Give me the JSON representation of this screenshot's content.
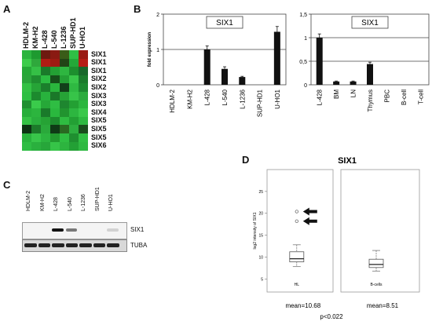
{
  "panels": {
    "a": "A",
    "b": "B",
    "c": "C",
    "d": "D"
  },
  "heatmap": {
    "cell_lines": [
      "HDLM-2",
      "KM-H2",
      "L-428",
      "L-540",
      "L-1236",
      "SUP-HD1",
      "U-HO1"
    ],
    "genes": [
      "SIX1",
      "SIX1",
      "SIX1",
      "SIX2",
      "SIX2",
      "SIX3",
      "SIX3",
      "SIX4",
      "SIX5",
      "SIX5",
      "SIX5",
      "SIX6"
    ],
    "colors": [
      [
        "#2bb43e",
        "#1e9a30",
        "#6e1a10",
        "#8a1a12",
        "#3a5c18",
        "#2fbf45",
        "#9a1b14"
      ],
      [
        "#3ccc4a",
        "#2fa83c",
        "#b01c14",
        "#9e1a12",
        "#224416",
        "#24a838",
        "#b51e16"
      ],
      [
        "#25a836",
        "#35c046",
        "#1a7a2a",
        "#23a034",
        "#2eb640",
        "#1d8f2e",
        "#17682a"
      ],
      [
        "#2aa53a",
        "#1f8e30",
        "#2cbc42",
        "#164f1a",
        "#24a035",
        "#39c64a",
        "#1a7c2c"
      ],
      [
        "#33c144",
        "#26a437",
        "#1b7f2c",
        "#2ab63d",
        "#12401a",
        "#2fb942",
        "#1c8a30"
      ],
      [
        "#2dbf42",
        "#1c8a2e",
        "#28b23d",
        "#1a7829",
        "#26a236",
        "#37c449",
        "#2bac3e"
      ],
      [
        "#1f9030",
        "#3acb4b",
        "#26a838",
        "#2fbd43",
        "#1e862f",
        "#23a033",
        "#2cb63f"
      ],
      [
        "#27ae3a",
        "#2cb53e",
        "#1a7a2a",
        "#2ab83e",
        "#21942f",
        "#2db640",
        "#3ac84b"
      ],
      [
        "#35c245",
        "#2aaf3d",
        "#26a335",
        "#1d8c2e",
        "#2fbc41",
        "#23a034",
        "#2eb941"
      ],
      [
        "#0d3313",
        "#1c7a2a",
        "#2aa93b",
        "#0f3a16",
        "#2a6a22",
        "#2dae3f",
        "#1a4d1d"
      ],
      [
        "#29b33d",
        "#38c64a",
        "#2cb43f",
        "#22992f",
        "#2fbe42",
        "#1f8f30",
        "#31bf44"
      ],
      [
        "#2ebd43",
        "#2ab03e",
        "#27a63a",
        "#36c448",
        "#2db43f",
        "#23a035",
        "#2fb942"
      ]
    ]
  },
  "chart_data": [
    {
      "type": "bar",
      "title": "SIX1",
      "ylabel": "fold expression",
      "categories": [
        "HDLM-2",
        "KM-H2",
        "L-428",
        "L-540",
        "L-1236",
        "SUP-HD1",
        "U-HO1"
      ],
      "values": [
        0,
        0,
        1.0,
        0.45,
        0.22,
        0,
        1.5
      ],
      "errors": [
        0,
        0,
        0.1,
        0.06,
        0.02,
        0,
        0.15
      ],
      "ylim": [
        0,
        2
      ],
      "yticks": [
        "0",
        "1",
        "2"
      ],
      "refline": 1
    },
    {
      "type": "bar",
      "title": "SIX1",
      "categories": [
        "L-428",
        "BM",
        "LN",
        "Thymus",
        "PBC",
        "B-cell",
        "T-cell"
      ],
      "values": [
        1.0,
        0.07,
        0.07,
        0.44,
        0,
        0,
        0
      ],
      "errors": [
        0.08,
        0.01,
        0.01,
        0.04,
        0,
        0,
        0
      ],
      "ylim": [
        0,
        1.5
      ],
      "yticks": [
        "0",
        "0,5",
        "1",
        "1,5"
      ],
      "reflines": [
        0.5,
        1
      ]
    },
    {
      "type": "box",
      "title": "SIX1",
      "ylabel": "log2 intensity of SIX1",
      "ylim": [
        2,
        30
      ],
      "yticks": [
        "5",
        "10",
        "15",
        "20",
        "25"
      ],
      "groups": [
        {
          "name": "HL",
          "whisker_low": 7.8,
          "q1": 8.9,
          "median": 9.6,
          "q3": 11.2,
          "whisker_high": 12.8,
          "outliers": [
            18.2,
            20.4
          ],
          "mean_label": "mean=10.68"
        },
        {
          "name": "B-cells",
          "whisker_low": 6.8,
          "q1": 7.6,
          "median": 8.3,
          "q3": 9.5,
          "whisker_high": 11.5,
          "outliers": [],
          "mean_label": "mean=8.51"
        }
      ],
      "pvalue": "p<0.022"
    }
  ],
  "western": {
    "lanes": [
      "HDLM-2",
      "KM-H2",
      "L-428",
      "L-540",
      "L-1236",
      "SUP-HD1",
      "U-HO1"
    ],
    "six1_label": "SIX1",
    "tuba_label": "TUBA"
  }
}
